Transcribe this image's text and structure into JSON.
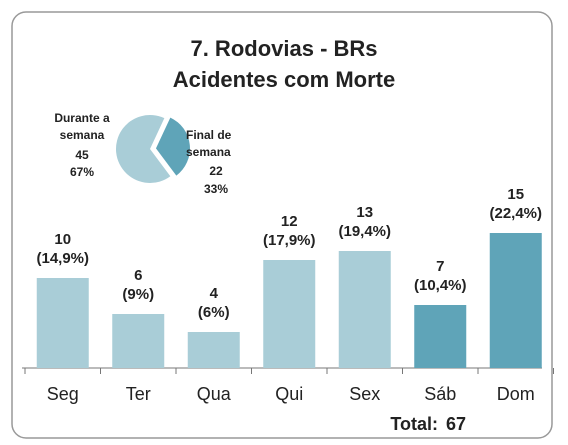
{
  "chart_data": [
    {
      "type": "bar",
      "title": "7. Rodovias - BRs",
      "subtitle": "Acidentes com Morte",
      "categories": [
        "Seg",
        "Ter",
        "Qua",
        "Qui",
        "Sex",
        "Sáb",
        "Dom"
      ],
      "values": [
        10,
        6,
        4,
        12,
        13,
        7,
        15
      ],
      "shares": [
        14.9,
        9,
        6,
        17.9,
        19.4,
        10.4,
        22.4
      ],
      "share_labels": [
        "(14,9%)",
        "(9%)",
        "(6%)",
        "(17,9%)",
        "(19,4%)",
        "(10,4%)",
        "(22,4%)"
      ],
      "colors": [
        "#a9cdd7",
        "#a9cdd7",
        "#a9cdd7",
        "#a9cdd7",
        "#a9cdd7",
        "#5fa4b8",
        "#5fa4b8"
      ],
      "total_label": "Total:",
      "total": 67
    },
    {
      "type": "pie",
      "categories": [
        "Durante a semana",
        "Final de semana"
      ],
      "values": [
        45,
        22
      ],
      "shares": [
        67,
        33
      ],
      "share_labels": [
        "67%",
        "33%"
      ],
      "colors": [
        "#a9cdd7",
        "#5fa4b8"
      ]
    }
  ]
}
